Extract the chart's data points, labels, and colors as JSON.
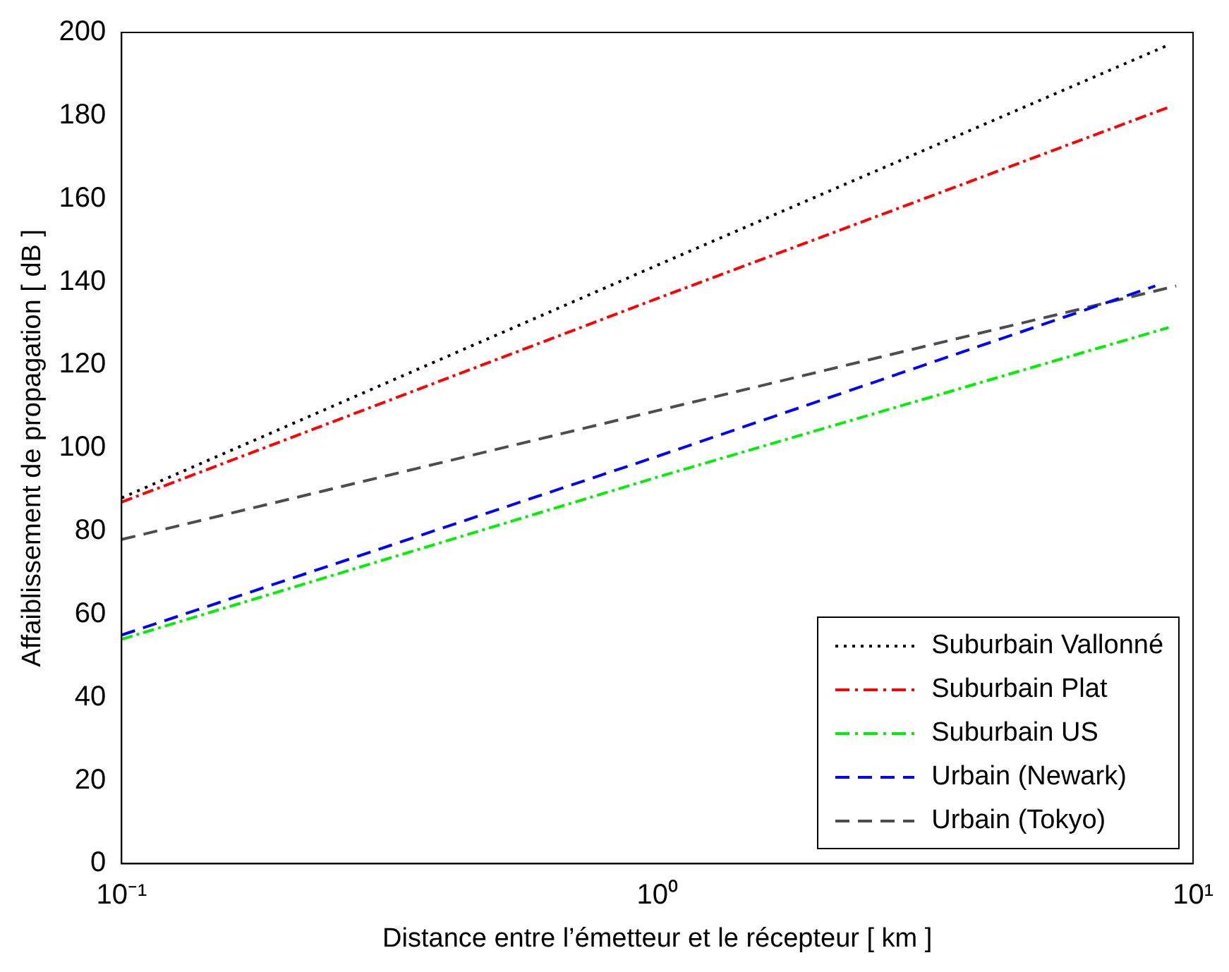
{
  "chart_data": {
    "type": "line",
    "xlabel": "Distance entre l’émetteur et le récepteur [ km ]",
    "ylabel": "Affaiblissement de propagation [ dB ]",
    "log": "x",
    "xlim": [
      0.1,
      10
    ],
    "xticks": [
      {
        "value": 0.1,
        "label": "10⁻¹"
      },
      {
        "value": 1,
        "label": "10⁰"
      },
      {
        "value": 10,
        "label": "10¹"
      }
    ],
    "ylim": [
      0,
      200
    ],
    "yticks": [
      0,
      20,
      40,
      60,
      80,
      100,
      120,
      140,
      160,
      180,
      200
    ],
    "grid": false,
    "legend": "bottom right",
    "series": [
      {
        "name": "Suburbain Vallonné",
        "color": "#000000",
        "line_style": "dotted",
        "x": [
          0.1,
          1,
          9
        ],
        "values": [
          88,
          144,
          197
        ]
      },
      {
        "name": "Suburbain Plat",
        "color": "#ff0000",
        "line_style": "dashdot",
        "x": [
          0.1,
          1,
          9
        ],
        "values": [
          87,
          136,
          182
        ]
      },
      {
        "name": "Suburbain US",
        "color": "#00ee00",
        "line_style": "dashdot",
        "x": [
          0.1,
          1,
          9
        ],
        "values": [
          54,
          93,
          129
        ]
      },
      {
        "name": "Urbain (Newark)",
        "color": "#0000ff",
        "line_style": "dashed",
        "x": [
          0.1,
          1,
          8.5
        ],
        "values": [
          55,
          98,
          139
        ]
      },
      {
        "name": "Urbain (Tokyo)",
        "color": "#4d4d4d",
        "line_style": "dashed",
        "x": [
          0.1,
          1,
          9.3
        ],
        "values": [
          78,
          109,
          139
        ]
      }
    ]
  }
}
